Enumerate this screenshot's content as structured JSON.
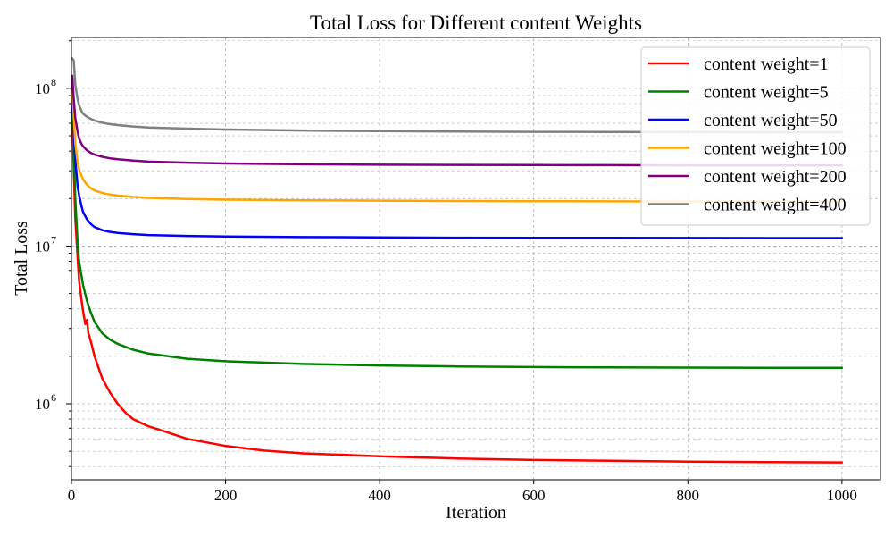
{
  "chart_data": {
    "type": "line",
    "title": "Total Loss for Different content Weights",
    "xlabel": "Iteration",
    "ylabel": "Total Loss",
    "xlim": [
      0,
      1050
    ],
    "ylim": [
      330000,
      210000000
    ],
    "yscale": "log",
    "grid": true,
    "legend_position": "top-right",
    "x_ticks": [
      {
        "value": 0,
        "label": "0"
      },
      {
        "value": 200,
        "label": "200"
      },
      {
        "value": 400,
        "label": "400"
      },
      {
        "value": 600,
        "label": "600"
      },
      {
        "value": 800,
        "label": "800"
      },
      {
        "value": 1000,
        "label": "1000"
      }
    ],
    "y_ticks": [
      {
        "value": 1000000,
        "base": "10",
        "exp": "6"
      },
      {
        "value": 10000000,
        "base": "10",
        "exp": "7"
      },
      {
        "value": 100000000,
        "base": "10",
        "exp": "8"
      }
    ],
    "series": [
      {
        "name": "content weight=1",
        "color": "#ff0000",
        "x": [
          1,
          3,
          5,
          8,
          10,
          13,
          15,
          18,
          20,
          22,
          25,
          30,
          35,
          40,
          50,
          60,
          70,
          80,
          100,
          120,
          150,
          200,
          250,
          300,
          400,
          500,
          600,
          700,
          800,
          900,
          1000
        ],
        "y": [
          80000000,
          30000000,
          15000000,
          8500000,
          6000000,
          4600000,
          3900000,
          3200000,
          3400000,
          2800000,
          2500000,
          2000000,
          1700000,
          1450000,
          1180000,
          1000000,
          880000,
          800000,
          720000,
          670000,
          600000,
          540000,
          505000,
          485000,
          465000,
          450000,
          440000,
          435000,
          430000,
          427000,
          425000
        ]
      },
      {
        "name": "content weight=5",
        "color": "#008000",
        "x": [
          1,
          3,
          5,
          8,
          10,
          13,
          15,
          20,
          25,
          30,
          40,
          50,
          60,
          80,
          100,
          150,
          200,
          300,
          400,
          500,
          600,
          700,
          800,
          900,
          1000
        ],
        "y": [
          95000000,
          40000000,
          20000000,
          10500000,
          8000000,
          6500000,
          5700000,
          4500000,
          3800000,
          3300000,
          2800000,
          2550000,
          2400000,
          2200000,
          2080000,
          1930000,
          1860000,
          1790000,
          1750000,
          1725000,
          1710000,
          1700000,
          1695000,
          1690000,
          1688000
        ]
      },
      {
        "name": "content weight=50",
        "color": "#0000ff",
        "x": [
          1,
          3,
          5,
          8,
          10,
          13,
          15,
          20,
          25,
          30,
          40,
          50,
          60,
          80,
          100,
          150,
          200,
          300,
          400,
          500,
          600,
          700,
          800,
          900,
          1000
        ],
        "y": [
          100000000,
          55000000,
          35000000,
          24000000,
          21000000,
          18000000,
          16500000,
          14800000,
          13800000,
          13200000,
          12600000,
          12300000,
          12100000,
          11900000,
          11750000,
          11600000,
          11500000,
          11400000,
          11350000,
          11300000,
          11280000,
          11260000,
          11250000,
          11240000,
          11230000
        ]
      },
      {
        "name": "content weight=100",
        "color": "#ffa500",
        "x": [
          1,
          3,
          5,
          8,
          10,
          13,
          15,
          20,
          25,
          30,
          40,
          50,
          60,
          80,
          100,
          150,
          200,
          300,
          400,
          500,
          600,
          700,
          800,
          900,
          1000
        ],
        "y": [
          110000000,
          65000000,
          45000000,
          34000000,
          30500000,
          28000000,
          26500000,
          24500000,
          23300000,
          22500000,
          21700000,
          21200000,
          20900000,
          20500000,
          20200000,
          19900000,
          19700000,
          19500000,
          19400000,
          19300000,
          19250000,
          19200000,
          19180000,
          19160000,
          19150000
        ]
      },
      {
        "name": "content weight=200",
        "color": "#800080",
        "x": [
          1,
          3,
          5,
          8,
          10,
          13,
          15,
          20,
          25,
          30,
          40,
          50,
          60,
          80,
          100,
          150,
          200,
          300,
          400,
          500,
          600,
          700,
          800,
          900,
          1000
        ],
        "y": [
          120000000,
          85000000,
          65000000,
          53000000,
          48000000,
          44500000,
          43000000,
          40500000,
          39000000,
          38000000,
          36800000,
          36000000,
          35500000,
          34800000,
          34300000,
          33800000,
          33400000,
          33000000,
          32800000,
          32700000,
          32600000,
          32550000,
          32500000,
          32480000,
          32450000
        ]
      },
      {
        "name": "content weight=400",
        "color": "#808080",
        "x": [
          1,
          3,
          5,
          8,
          10,
          13,
          15,
          20,
          25,
          30,
          40,
          50,
          60,
          80,
          100,
          150,
          200,
          300,
          400,
          500,
          600,
          700,
          800,
          900,
          1000
        ],
        "y": [
          155000000,
          150000000,
          105000000,
          85000000,
          78000000,
          72000000,
          69000000,
          66000000,
          64000000,
          62500000,
          60500000,
          59300000,
          58500000,
          57300000,
          56500000,
          55500000,
          54800000,
          54000000,
          53500000,
          53200000,
          53000000,
          52900000,
          52800000,
          52700000,
          52600000
        ]
      }
    ]
  }
}
